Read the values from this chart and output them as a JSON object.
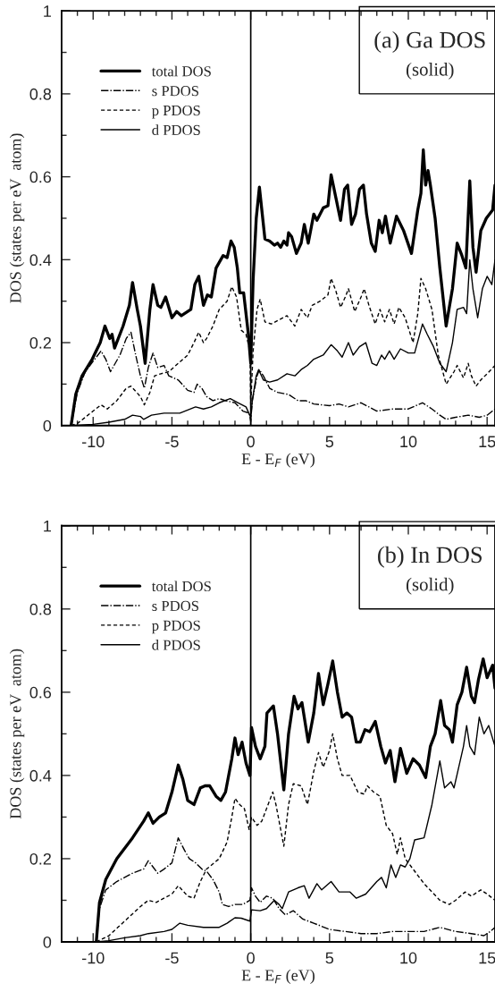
{
  "chart_data": [
    {
      "type": "line",
      "title": "(a) Ga DOS",
      "subtitle": "(solid)",
      "xlabel": "E - E$_{F}$ (eV)",
      "ylabel": "DOS (states per eV  atom)",
      "xlim": [
        -12,
        15.5
      ],
      "ylim": [
        0,
        1
      ],
      "xticks": [
        -10,
        -5,
        0,
        5,
        10,
        15,
        {
          "value": -11,
          "label": null
        },
        {
          "value": -9,
          "label": null
        },
        {
          "value": -8,
          "label": null
        },
        {
          "value": -7,
          "label": null
        },
        {
          "value": -6,
          "label": null
        },
        {
          "value": -4,
          "label": null
        },
        {
          "value": -3,
          "label": null
        },
        {
          "value": -2,
          "label": null
        },
        {
          "value": -1,
          "label": null
        },
        {
          "value": 1,
          "label": null
        },
        {
          "value": 2,
          "label": null
        },
        {
          "value": 3,
          "label": null
        },
        {
          "value": 4,
          "label": null
        },
        {
          "value": 6,
          "label": null
        },
        {
          "value": 7,
          "label": null
        },
        {
          "value": 8,
          "label": null
        },
        {
          "value": 9,
          "label": null
        },
        {
          "value": 11,
          "label": null
        },
        {
          "value": 12,
          "label": null
        },
        {
          "value": 13,
          "label": null
        },
        {
          "value": 14,
          "label": null
        }
      ],
      "yticks": [
        0,
        0.2,
        0.4,
        0.6,
        0.8,
        1,
        {
          "value": 0.1,
          "label": null
        },
        {
          "value": 0.3,
          "label": null
        },
        {
          "value": 0.5,
          "label": null
        },
        {
          "value": 0.7,
          "label": null
        },
        {
          "value": 0.9,
          "label": null
        }
      ],
      "legend": "top left",
      "grid": false,
      "ref_lines": [
        {
          "axis": "x",
          "value": 0,
          "color": "#000000",
          "line_style": "solid"
        }
      ],
      "series": [
        {
          "name": "total DOS",
          "color": "#000000",
          "line_style": "solid",
          "x": [
            -11.4,
            -11.1,
            -10.7,
            -10.06,
            -9.55,
            -9.25,
            -8.95,
            -8.8,
            -8.64,
            -8.1,
            -7.7,
            -7.5,
            -7.2,
            -7.0,
            -6.7,
            -6.4,
            -6.2,
            -5.9,
            -5.7,
            -5.4,
            -5.0,
            -4.7,
            -4.4,
            -3.8,
            -3.55,
            -3.3,
            -3.0,
            -2.75,
            -2.5,
            -2.2,
            -1.75,
            -1.5,
            -1.25,
            -1.05,
            -0.85,
            -0.7,
            -0.45,
            -0.15,
            0.0,
            0.15,
            0.35,
            0.55,
            0.9,
            1.2,
            1.5,
            1.7,
            1.9,
            2.1,
            2.3,
            2.4,
            2.6,
            2.9,
            3.2,
            3.4,
            3.65,
            4.0,
            4.2,
            4.6,
            4.9,
            5.1,
            5.4,
            5.7,
            5.95,
            6.15,
            6.4,
            6.65,
            6.9,
            7.15,
            7.35,
            7.65,
            7.9,
            8.15,
            8.35,
            8.55,
            8.85,
            9.25,
            9.7,
            10.2,
            10.6,
            10.8,
            10.95,
            11.1,
            11.25,
            11.4,
            11.7,
            12.0,
            12.4,
            12.8,
            13.1,
            13.4,
            13.65,
            13.9,
            14.1,
            14.3,
            14.6,
            14.95,
            15.35,
            15.5
          ],
          "values": [
            0,
            0.076,
            0.12,
            0.16,
            0.2,
            0.24,
            0.21,
            0.22,
            0.187,
            0.24,
            0.29,
            0.345,
            0.28,
            0.24,
            0.15,
            0.28,
            0.34,
            0.29,
            0.285,
            0.31,
            0.26,
            0.275,
            0.265,
            0.28,
            0.34,
            0.36,
            0.29,
            0.315,
            0.31,
            0.38,
            0.41,
            0.405,
            0.445,
            0.43,
            0.38,
            0.32,
            0.32,
            0.22,
            0.15,
            0.35,
            0.5,
            0.575,
            0.45,
            0.445,
            0.435,
            0.44,
            0.43,
            0.445,
            0.435,
            0.465,
            0.455,
            0.415,
            0.44,
            0.485,
            0.44,
            0.51,
            0.495,
            0.525,
            0.53,
            0.605,
            0.55,
            0.495,
            0.57,
            0.58,
            0.485,
            0.51,
            0.57,
            0.58,
            0.51,
            0.44,
            0.42,
            0.495,
            0.465,
            0.505,
            0.44,
            0.505,
            0.47,
            0.415,
            0.52,
            0.56,
            0.665,
            0.58,
            0.615,
            0.58,
            0.5,
            0.38,
            0.24,
            0.33,
            0.44,
            0.41,
            0.38,
            0.59,
            0.43,
            0.37,
            0.47,
            0.5,
            0.52,
            0.58
          ]
        },
        {
          "name": "s PDOS",
          "color": "#000000",
          "line_style": "dashdot",
          "x": [
            -11.4,
            -11.0,
            -10.5,
            -10.0,
            -9.5,
            -9.2,
            -8.9,
            -8.3,
            -7.9,
            -7.6,
            -7.3,
            -7.0,
            -6.75,
            -6.5,
            -6.2,
            -5.9,
            -5.5,
            -5.2,
            -4.6,
            -4.0,
            -3.6,
            -3.4,
            -3.1,
            -2.8,
            -2.4,
            -2.0,
            -1.6,
            -1.0,
            -0.5,
            -0.1,
            0.0,
            0.1,
            0.4,
            0.55,
            0.8,
            1.2,
            1.7,
            2.4,
            3.0,
            3.5,
            4.0,
            5.0,
            5.6,
            6.2,
            7.0,
            7.5,
            8.0,
            9.0,
            10.0,
            10.9,
            11.5,
            12.0,
            12.4,
            13.0,
            13.8,
            14.5,
            15.0,
            15.5
          ],
          "values": [
            0,
            0.08,
            0.13,
            0.155,
            0.18,
            0.16,
            0.13,
            0.17,
            0.21,
            0.225,
            0.17,
            0.12,
            0.09,
            0.14,
            0.175,
            0.14,
            0.145,
            0.12,
            0.11,
            0.085,
            0.08,
            0.1,
            0.09,
            0.07,
            0.06,
            0.065,
            0.06,
            0.055,
            0.035,
            0.03,
            0.01,
            0.06,
            0.12,
            0.135,
            0.12,
            0.09,
            0.08,
            0.075,
            0.06,
            0.06,
            0.052,
            0.048,
            0.052,
            0.045,
            0.055,
            0.045,
            0.035,
            0.04,
            0.04,
            0.055,
            0.04,
            0.025,
            0.015,
            0.02,
            0.025,
            0.02,
            0.025,
            0.04
          ]
        },
        {
          "name": "p PDOS",
          "color": "#000000",
          "line_style": "dashed",
          "x": [
            -11.4,
            -11.0,
            -10.5,
            -10.0,
            -9.5,
            -9.1,
            -8.5,
            -7.9,
            -7.6,
            -7.0,
            -6.75,
            -6.4,
            -6.1,
            -5.7,
            -5.2,
            -4.6,
            -4.0,
            -3.6,
            -3.3,
            -3.0,
            -2.8,
            -2.4,
            -2.0,
            -1.5,
            -1.2,
            -0.9,
            -0.6,
            -0.3,
            -0.05,
            0.0,
            0.15,
            0.4,
            0.6,
            0.9,
            1.3,
            1.8,
            2.3,
            2.8,
            3.2,
            3.6,
            3.9,
            4.4,
            4.9,
            5.1,
            5.4,
            5.7,
            6.0,
            6.2,
            6.6,
            7.0,
            7.2,
            7.5,
            7.9,
            8.2,
            8.5,
            8.8,
            9.1,
            9.4,
            9.8,
            10.3,
            10.6,
            10.8,
            11.1,
            11.5,
            11.9,
            12.4,
            12.9,
            13.1,
            13.5,
            13.8,
            14.0,
            14.3,
            14.6,
            15.0,
            15.5
          ],
          "values": [
            0,
            0.005,
            0.02,
            0.035,
            0.05,
            0.04,
            0.06,
            0.09,
            0.095,
            0.07,
            0.05,
            0.08,
            0.12,
            0.125,
            0.13,
            0.15,
            0.17,
            0.2,
            0.225,
            0.2,
            0.21,
            0.24,
            0.28,
            0.3,
            0.335,
            0.31,
            0.23,
            0.22,
            0.18,
            0.05,
            0.18,
            0.28,
            0.305,
            0.25,
            0.245,
            0.255,
            0.265,
            0.24,
            0.28,
            0.26,
            0.29,
            0.3,
            0.315,
            0.355,
            0.325,
            0.285,
            0.31,
            0.33,
            0.275,
            0.31,
            0.33,
            0.29,
            0.245,
            0.28,
            0.25,
            0.28,
            0.245,
            0.285,
            0.26,
            0.2,
            0.27,
            0.355,
            0.33,
            0.28,
            0.17,
            0.1,
            0.13,
            0.145,
            0.115,
            0.15,
            0.12,
            0.095,
            0.11,
            0.125,
            0.145
          ]
        },
        {
          "name": "d PDOS",
          "color": "#000000",
          "line_style": "solid",
          "x": [
            -11.4,
            -10.0,
            -9.0,
            -8.0,
            -7.5,
            -7.0,
            -6.8,
            -6.3,
            -5.5,
            -4.5,
            -3.5,
            -3.0,
            -2.5,
            -2.0,
            -1.3,
            -0.8,
            -0.3,
            0.0,
            0.1,
            0.35,
            0.5,
            0.8,
            1.2,
            1.7,
            2.3,
            2.8,
            3.2,
            3.6,
            4.0,
            4.6,
            5.1,
            5.5,
            5.8,
            6.2,
            6.5,
            6.9,
            7.3,
            7.7,
            8.0,
            8.3,
            8.5,
            8.8,
            9.1,
            9.5,
            10.0,
            10.4,
            10.9,
            11.2,
            11.6,
            12.0,
            12.4,
            12.8,
            13.1,
            13.5,
            13.7,
            13.9,
            14.1,
            14.4,
            14.7,
            15.0,
            15.3,
            15.5
          ],
          "values": [
            0,
            0.003,
            0.008,
            0.015,
            0.025,
            0.022,
            0.015,
            0.025,
            0.03,
            0.03,
            0.045,
            0.04,
            0.045,
            0.055,
            0.065,
            0.055,
            0.045,
            0.02,
            0.06,
            0.12,
            0.135,
            0.11,
            0.105,
            0.11,
            0.125,
            0.12,
            0.135,
            0.145,
            0.16,
            0.17,
            0.195,
            0.18,
            0.165,
            0.2,
            0.17,
            0.19,
            0.2,
            0.15,
            0.145,
            0.17,
            0.16,
            0.18,
            0.16,
            0.185,
            0.175,
            0.175,
            0.245,
            0.22,
            0.19,
            0.15,
            0.13,
            0.2,
            0.28,
            0.285,
            0.27,
            0.4,
            0.33,
            0.26,
            0.33,
            0.36,
            0.34,
            0.4
          ]
        }
      ]
    },
    {
      "type": "line",
      "title": "(b) In DOS",
      "subtitle": "(solid)",
      "xlabel": "E - E$_{F}$ (eV)",
      "ylabel": "DOS (states per eV  atom)",
      "xlim": [
        -12,
        15.5
      ],
      "ylim": [
        0,
        1
      ],
      "xticks": [
        -10,
        -5,
        0,
        5,
        10,
        15,
        {
          "value": -11,
          "label": null
        },
        {
          "value": -9,
          "label": null
        },
        {
          "value": -8,
          "label": null
        },
        {
          "value": -7,
          "label": null
        },
        {
          "value": -6,
          "label": null
        },
        {
          "value": -4,
          "label": null
        },
        {
          "value": -3,
          "label": null
        },
        {
          "value": -2,
          "label": null
        },
        {
          "value": -1,
          "label": null
        },
        {
          "value": 1,
          "label": null
        },
        {
          "value": 2,
          "label": null
        },
        {
          "value": 3,
          "label": null
        },
        {
          "value": 4,
          "label": null
        },
        {
          "value": 6,
          "label": null
        },
        {
          "value": 7,
          "label": null
        },
        {
          "value": 8,
          "label": null
        },
        {
          "value": 9,
          "label": null
        },
        {
          "value": 11,
          "label": null
        },
        {
          "value": 12,
          "label": null
        },
        {
          "value": 13,
          "label": null
        },
        {
          "value": 14,
          "label": null
        }
      ],
      "yticks": [
        0,
        0.2,
        0.4,
        0.6,
        0.8,
        1,
        {
          "value": 0.1,
          "label": null
        },
        {
          "value": 0.3,
          "label": null
        },
        {
          "value": 0.5,
          "label": null
        },
        {
          "value": 0.7,
          "label": null
        },
        {
          "value": 0.9,
          "label": null
        }
      ],
      "legend": "top left",
      "grid": false,
      "ref_lines": [
        {
          "axis": "x",
          "value": 0,
          "color": "#000000",
          "line_style": "solid"
        }
      ],
      "series": [
        {
          "name": "total DOS",
          "color": "#000000",
          "line_style": "solid",
          "x": [
            -9.8,
            -9.6,
            -9.2,
            -8.5,
            -7.5,
            -6.8,
            -6.5,
            -6.2,
            -5.8,
            -5.4,
            -5.0,
            -4.6,
            -4.3,
            -4.0,
            -3.6,
            -3.2,
            -2.9,
            -2.6,
            -2.2,
            -1.9,
            -1.6,
            -1.2,
            -1.0,
            -0.8,
            -0.55,
            -0.3,
            -0.05,
            0.05,
            0.3,
            0.6,
            0.9,
            1.03,
            1.44,
            1.7,
            2.1,
            2.4,
            2.75,
            3.0,
            3.25,
            3.65,
            4.0,
            4.3,
            4.6,
            4.9,
            5.2,
            5.5,
            5.8,
            6.1,
            6.4,
            6.7,
            6.95,
            7.25,
            7.55,
            7.9,
            8.25,
            8.55,
            8.85,
            9.15,
            9.5,
            9.9,
            10.3,
            10.7,
            11.1,
            11.4,
            11.7,
            12.05,
            12.3,
            12.6,
            12.8,
            13.1,
            13.4,
            13.7,
            14.0,
            14.2,
            14.45,
            14.75,
            15.0,
            15.35,
            15.5
          ],
          "values": [
            0,
            0.094,
            0.15,
            0.2,
            0.25,
            0.29,
            0.31,
            0.285,
            0.3,
            0.31,
            0.36,
            0.425,
            0.39,
            0.34,
            0.33,
            0.37,
            0.375,
            0.375,
            0.35,
            0.34,
            0.36,
            0.44,
            0.49,
            0.45,
            0.48,
            0.43,
            0.4,
            0.515,
            0.47,
            0.44,
            0.47,
            0.55,
            0.567,
            0.5,
            0.365,
            0.5,
            0.59,
            0.56,
            0.575,
            0.48,
            0.55,
            0.645,
            0.57,
            0.62,
            0.675,
            0.6,
            0.54,
            0.55,
            0.54,
            0.48,
            0.48,
            0.51,
            0.505,
            0.53,
            0.47,
            0.43,
            0.46,
            0.385,
            0.465,
            0.405,
            0.44,
            0.425,
            0.395,
            0.47,
            0.5,
            0.58,
            0.52,
            0.51,
            0.48,
            0.57,
            0.6,
            0.66,
            0.59,
            0.575,
            0.63,
            0.68,
            0.635,
            0.665,
            0.61
          ]
        },
        {
          "name": "s PDOS",
          "color": "#000000",
          "line_style": "dashdot",
          "x": [
            -9.8,
            -9.6,
            -9.2,
            -8.5,
            -7.5,
            -6.8,
            -6.5,
            -6.2,
            -5.9,
            -5.5,
            -5.0,
            -4.6,
            -4.2,
            -3.9,
            -3.5,
            -3.1,
            -2.8,
            -2.4,
            -2.0,
            -1.8,
            -1.4,
            -1.0,
            -0.5,
            -0.05,
            0.05,
            0.3,
            0.6,
            1.0,
            1.4,
            1.8,
            2.2,
            2.7,
            3.3,
            4.0,
            5.0,
            6.0,
            7.0,
            8.0,
            9.0,
            10.0,
            11.0,
            12.0,
            13.0,
            14.0,
            14.8,
            15.2,
            15.5
          ],
          "values": [
            0,
            0.08,
            0.125,
            0.145,
            0.165,
            0.175,
            0.195,
            0.18,
            0.165,
            0.175,
            0.19,
            0.25,
            0.22,
            0.2,
            0.19,
            0.175,
            0.17,
            0.15,
            0.12,
            0.09,
            0.085,
            0.09,
            0.09,
            0.1,
            0.13,
            0.11,
            0.095,
            0.11,
            0.105,
            0.08,
            0.065,
            0.075,
            0.055,
            0.045,
            0.03,
            0.025,
            0.02,
            0.02,
            0.025,
            0.025,
            0.025,
            0.035,
            0.025,
            0.02,
            0.015,
            0.025,
            0.035
          ]
        },
        {
          "name": "p PDOS",
          "color": "#000000",
          "line_style": "dashed",
          "x": [
            -9.8,
            -9.0,
            -8.0,
            -7.0,
            -6.5,
            -6.0,
            -5.0,
            -4.6,
            -4.0,
            -3.6,
            -3.2,
            -2.8,
            -2.0,
            -1.5,
            -1.2,
            -1.0,
            -0.7,
            -0.4,
            -0.1,
            0.05,
            0.4,
            0.7,
            1.0,
            1.4,
            1.6,
            1.9,
            2.1,
            2.4,
            2.7,
            3.2,
            3.6,
            4.0,
            4.3,
            4.6,
            5.0,
            5.2,
            5.5,
            5.8,
            6.3,
            6.8,
            7.2,
            7.4,
            7.8,
            8.2,
            8.6,
            9.0,
            9.3,
            9.5,
            9.8,
            10.2,
            10.6,
            11.0,
            11.5,
            12.0,
            12.6,
            13.0,
            13.6,
            14.0,
            14.6,
            15.0,
            15.5
          ],
          "values": [
            0,
            0.015,
            0.05,
            0.085,
            0.1,
            0.095,
            0.115,
            0.135,
            0.11,
            0.105,
            0.145,
            0.175,
            0.2,
            0.24,
            0.3,
            0.345,
            0.33,
            0.32,
            0.27,
            0.3,
            0.28,
            0.29,
            0.32,
            0.36,
            0.33,
            0.27,
            0.23,
            0.33,
            0.38,
            0.375,
            0.33,
            0.41,
            0.455,
            0.42,
            0.46,
            0.5,
            0.44,
            0.4,
            0.4,
            0.36,
            0.355,
            0.375,
            0.36,
            0.35,
            0.28,
            0.26,
            0.21,
            0.25,
            0.2,
            0.18,
            0.16,
            0.14,
            0.12,
            0.1,
            0.09,
            0.1,
            0.12,
            0.11,
            0.125,
            0.115,
            0.1
          ]
        },
        {
          "name": "d PDOS",
          "color": "#000000",
          "line_style": "solid",
          "x": [
            -9.8,
            -9.0,
            -8.0,
            -7.0,
            -6.5,
            -5.5,
            -5.0,
            -4.5,
            -4.0,
            -3.0,
            -2.0,
            -1.5,
            -1.0,
            -0.6,
            -0.05,
            0.05,
            0.6,
            1.0,
            1.5,
            1.8,
            2.0,
            2.4,
            3.0,
            3.4,
            3.7,
            4.2,
            4.5,
            5.1,
            5.6,
            6.3,
            6.7,
            7.3,
            8.0,
            8.3,
            8.6,
            8.9,
            9.2,
            9.5,
            9.8,
            10.1,
            10.4,
            11.0,
            11.5,
            12.0,
            12.3,
            12.7,
            12.9,
            13.2,
            13.5,
            13.7,
            13.9,
            14.2,
            14.5,
            14.8,
            15.1,
            15.5
          ],
          "values": [
            0,
            0.003,
            0.01,
            0.015,
            0.02,
            0.025,
            0.03,
            0.045,
            0.04,
            0.035,
            0.035,
            0.045,
            0.058,
            0.057,
            0.05,
            0.077,
            0.075,
            0.08,
            0.1,
            0.09,
            0.08,
            0.12,
            0.13,
            0.135,
            0.105,
            0.14,
            0.125,
            0.145,
            0.12,
            0.12,
            0.105,
            0.115,
            0.145,
            0.155,
            0.13,
            0.185,
            0.155,
            0.185,
            0.18,
            0.2,
            0.245,
            0.25,
            0.33,
            0.435,
            0.37,
            0.385,
            0.37,
            0.42,
            0.47,
            0.52,
            0.47,
            0.45,
            0.54,
            0.5,
            0.52,
            0.47
          ]
        }
      ]
    }
  ]
}
